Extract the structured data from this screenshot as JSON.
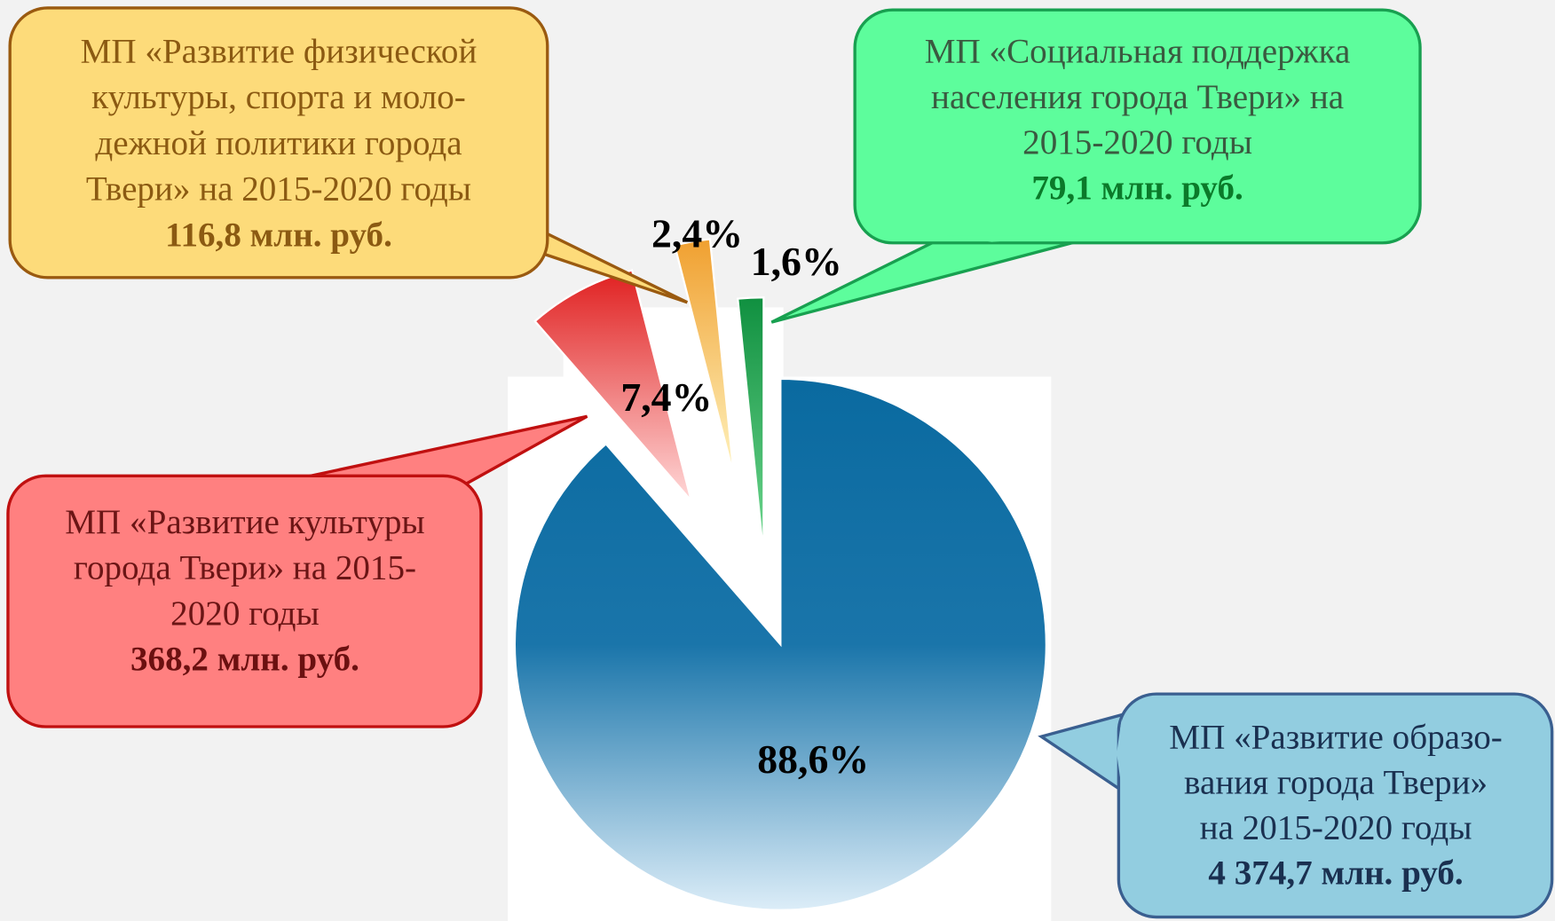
{
  "chart_data": {
    "type": "pie",
    "values": [
      88.6,
      7.4,
      2.4,
      1.6
    ],
    "value_labels": [
      "88,6%",
      "7,4%",
      "2,4%",
      "1,6%"
    ],
    "colors": [
      "#0a6aa0",
      "#e02020",
      "#f0a030",
      "#109040"
    ],
    "callouts": [
      {
        "lines": [
          "МП «Развитие образо-",
          "вания города Твери»",
          "на 2015-2020 годы"
        ],
        "amount": "4 374,7 млн. руб."
      },
      {
        "lines": [
          "МП «Развитие культуры",
          "города Твери» на 2015-",
          "2020 годы"
        ],
        "amount": "368,2 млн. руб."
      },
      {
        "lines": [
          "МП «Развитие физической",
          "культуры, спорта и моло-",
          "дежной политики города",
          "Твери» на 2015-2020 годы"
        ],
        "amount": "116,8 млн. руб."
      },
      {
        "lines": [
          "МП «Социальная поддержка",
          "населения города Твери» на",
          "2015-2020 годы"
        ],
        "amount": "79,1 млн. руб."
      }
    ]
  }
}
